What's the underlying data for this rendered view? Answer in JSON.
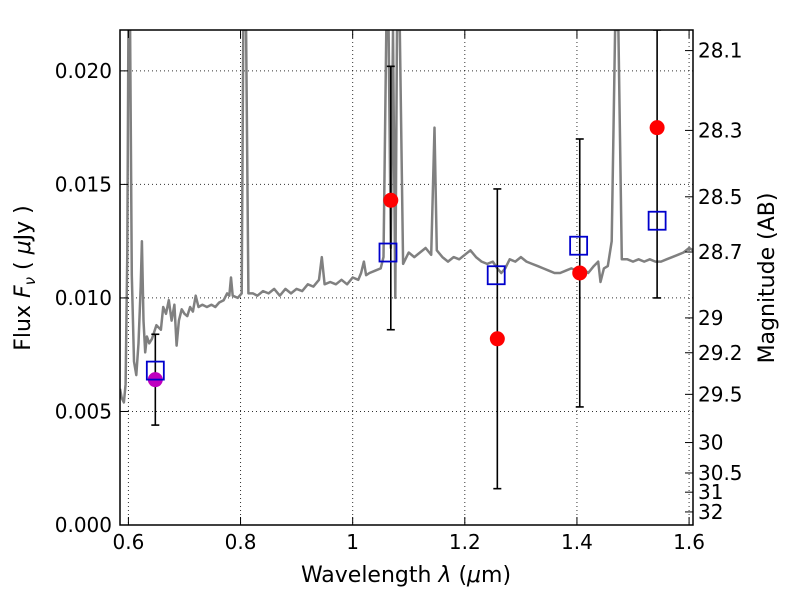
{
  "chart_data": {
    "type": "scatter",
    "title": "",
    "xlabel_prefix": "Wavelength  ",
    "xlabel_symbol": "λ",
    "xlabel_unit_pre": " (",
    "xlabel_unit_symbol": "μ",
    "xlabel_unit_post": "m)",
    "ylabel_prefix": "Flux  ",
    "ylabel_symbol": "F",
    "ylabel_sub": "ν",
    "ylabel_unit_pre": "  ( ",
    "ylabel_unit_symbol": "μ",
    "ylabel_unit_post": "Jy )",
    "y2label": "Magnitude (AB)",
    "xlim": [
      0.585,
      1.607
    ],
    "ylim": [
      0.0,
      0.0218
    ],
    "grid": true,
    "x_ticks": [
      {
        "v": 0.6,
        "label": "0.6"
      },
      {
        "v": 0.8,
        "label": "0.8"
      },
      {
        "v": 1.0,
        "label": "1"
      },
      {
        "v": 1.2,
        "label": "1.2"
      },
      {
        "v": 1.4,
        "label": "1.4"
      },
      {
        "v": 1.6,
        "label": "1.6"
      }
    ],
    "y_ticks": [
      {
        "v": 0.0,
        "label": "0.000"
      },
      {
        "v": 0.005,
        "label": "0.005"
      },
      {
        "v": 0.01,
        "label": "0.010"
      },
      {
        "v": 0.015,
        "label": "0.015"
      },
      {
        "v": 0.02,
        "label": "0.020"
      }
    ],
    "mag_ticks": [
      {
        "m": 28.1,
        "label": "28.1"
      },
      {
        "m": 28.3,
        "label": "28.3"
      },
      {
        "m": 28.5,
        "label": "28.5"
      },
      {
        "m": 28.7,
        "label": "28.7"
      },
      {
        "m": 29.0,
        "label": "29"
      },
      {
        "m": 29.2,
        "label": "29.2"
      },
      {
        "m": 29.5,
        "label": "29.5"
      },
      {
        "m": 30.0,
        "label": "30"
      },
      {
        "m": 30.5,
        "label": "30.5"
      },
      {
        "m": 31.0,
        "label": "31"
      },
      {
        "m": 32.0,
        "label": "32"
      }
    ],
    "colors": {
      "spectrum": "#808080",
      "observed": "#ff0000",
      "observed_first": "#bf00bf",
      "model": "#0000cc",
      "errorbar": "#000000"
    },
    "observed_points": [
      {
        "x": 0.648,
        "y": 0.0064,
        "err_low": 0.0044,
        "err_high": 0.0084
      },
      {
        "x": 1.068,
        "y": 0.0143,
        "err_low": 0.0086,
        "err_high": 0.0202
      },
      {
        "x": 1.258,
        "y": 0.0082,
        "err_low": 0.0016,
        "err_high": 0.0148
      },
      {
        "x": 1.405,
        "y": 0.0111,
        "err_low": 0.0052,
        "err_high": 0.017
      },
      {
        "x": 1.543,
        "y": 0.0175,
        "err_low": 0.01,
        "err_high": 0.0218
      }
    ],
    "model_points": [
      {
        "x": 0.648,
        "y": 0.0068
      },
      {
        "x": 1.063,
        "y": 0.012
      },
      {
        "x": 1.256,
        "y": 0.011
      },
      {
        "x": 1.403,
        "y": 0.0123
      },
      {
        "x": 1.543,
        "y": 0.0134
      }
    ],
    "spectrum": [
      [
        0.585,
        0.006
      ],
      [
        0.588,
        0.0056
      ],
      [
        0.592,
        0.0054
      ],
      [
        0.595,
        0.0062
      ],
      [
        0.598,
        0.012
      ],
      [
        0.6,
        0.0218
      ],
      [
        0.603,
        0.0218
      ],
      [
        0.606,
        0.011
      ],
      [
        0.61,
        0.0072
      ],
      [
        0.614,
        0.0066
      ],
      [
        0.618,
        0.008
      ],
      [
        0.622,
        0.0105
      ],
      [
        0.624,
        0.0125
      ],
      [
        0.627,
        0.009
      ],
      [
        0.63,
        0.0076
      ],
      [
        0.633,
        0.0083
      ],
      [
        0.637,
        0.008
      ],
      [
        0.642,
        0.0082
      ],
      [
        0.65,
        0.0088
      ],
      [
        0.658,
        0.0086
      ],
      [
        0.662,
        0.0096
      ],
      [
        0.667,
        0.0093
      ],
      [
        0.672,
        0.0099
      ],
      [
        0.677,
        0.009
      ],
      [
        0.682,
        0.0097
      ],
      [
        0.686,
        0.0079
      ],
      [
        0.69,
        0.009
      ],
      [
        0.695,
        0.0095
      ],
      [
        0.7,
        0.0093
      ],
      [
        0.705,
        0.0092
      ],
      [
        0.71,
        0.0096
      ],
      [
        0.715,
        0.0094
      ],
      [
        0.72,
        0.0101
      ],
      [
        0.725,
        0.0096
      ],
      [
        0.732,
        0.0097
      ],
      [
        0.74,
        0.0096
      ],
      [
        0.748,
        0.0097
      ],
      [
        0.755,
        0.0096
      ],
      [
        0.762,
        0.0098
      ],
      [
        0.77,
        0.0099
      ],
      [
        0.776,
        0.0102
      ],
      [
        0.78,
        0.0101
      ],
      [
        0.783,
        0.0109
      ],
      [
        0.786,
        0.0101
      ],
      [
        0.795,
        0.01
      ],
      [
        0.802,
        0.0102
      ],
      [
        0.805,
        0.0218
      ],
      [
        0.81,
        0.0218
      ],
      [
        0.814,
        0.0102
      ],
      [
        0.822,
        0.0102
      ],
      [
        0.83,
        0.0101
      ],
      [
        0.84,
        0.0103
      ],
      [
        0.85,
        0.0102
      ],
      [
        0.86,
        0.0104
      ],
      [
        0.87,
        0.0101
      ],
      [
        0.88,
        0.0104
      ],
      [
        0.89,
        0.0102
      ],
      [
        0.9,
        0.0104
      ],
      [
        0.91,
        0.0103
      ],
      [
        0.92,
        0.0106
      ],
      [
        0.93,
        0.0105
      ],
      [
        0.94,
        0.0108
      ],
      [
        0.945,
        0.0118
      ],
      [
        0.95,
        0.0106
      ],
      [
        0.96,
        0.0107
      ],
      [
        0.97,
        0.0106
      ],
      [
        0.98,
        0.0108
      ],
      [
        0.99,
        0.0106
      ],
      [
        1.0,
        0.0109
      ],
      [
        1.01,
        0.0108
      ],
      [
        1.015,
        0.0111
      ],
      [
        1.02,
        0.0116
      ],
      [
        1.024,
        0.011
      ],
      [
        1.03,
        0.0111
      ],
      [
        1.04,
        0.0112
      ],
      [
        1.05,
        0.0113
      ],
      [
        1.055,
        0.0118
      ],
      [
        1.06,
        0.0218
      ],
      [
        1.064,
        0.0218
      ],
      [
        1.068,
        0.0122
      ],
      [
        1.072,
        0.0218
      ],
      [
        1.076,
        0.01
      ],
      [
        1.079,
        0.0218
      ],
      [
        1.084,
        0.0218
      ],
      [
        1.09,
        0.0115
      ],
      [
        1.1,
        0.012
      ],
      [
        1.11,
        0.0118
      ],
      [
        1.12,
        0.012
      ],
      [
        1.13,
        0.0122
      ],
      [
        1.14,
        0.0119
      ],
      [
        1.146,
        0.0175
      ],
      [
        1.15,
        0.0121
      ],
      [
        1.16,
        0.0118
      ],
      [
        1.17,
        0.0116
      ],
      [
        1.18,
        0.0118
      ],
      [
        1.19,
        0.0117
      ],
      [
        1.2,
        0.0119
      ],
      [
        1.21,
        0.0121
      ],
      [
        1.22,
        0.0118
      ],
      [
        1.23,
        0.0116
      ],
      [
        1.24,
        0.0115
      ],
      [
        1.25,
        0.0116
      ],
      [
        1.258,
        0.0113
      ],
      [
        1.265,
        0.0111
      ],
      [
        1.272,
        0.0113
      ],
      [
        1.28,
        0.0117
      ],
      [
        1.29,
        0.0116
      ],
      [
        1.3,
        0.0118
      ],
      [
        1.31,
        0.0116
      ],
      [
        1.32,
        0.0115
      ],
      [
        1.33,
        0.0114
      ],
      [
        1.34,
        0.0113
      ],
      [
        1.35,
        0.0112
      ],
      [
        1.36,
        0.0111
      ],
      [
        1.37,
        0.0111
      ],
      [
        1.38,
        0.0112
      ],
      [
        1.39,
        0.0113
      ],
      [
        1.4,
        0.0112
      ],
      [
        1.41,
        0.0113
      ],
      [
        1.42,
        0.0111
      ],
      [
        1.43,
        0.0114
      ],
      [
        1.438,
        0.0116
      ],
      [
        1.442,
        0.0107
      ],
      [
        1.448,
        0.0113
      ],
      [
        1.455,
        0.0114
      ],
      [
        1.462,
        0.0125
      ],
      [
        1.468,
        0.0218
      ],
      [
        1.474,
        0.0218
      ],
      [
        1.48,
        0.0117
      ],
      [
        1.49,
        0.0117
      ],
      [
        1.5,
        0.0116
      ],
      [
        1.51,
        0.0117
      ],
      [
        1.52,
        0.0116
      ],
      [
        1.53,
        0.0117
      ],
      [
        1.54,
        0.0116
      ],
      [
        1.55,
        0.0116
      ],
      [
        1.56,
        0.0117
      ],
      [
        1.57,
        0.0118
      ],
      [
        1.58,
        0.0119
      ],
      [
        1.59,
        0.012
      ],
      [
        1.6,
        0.0122
      ],
      [
        1.607,
        0.0121
      ]
    ]
  }
}
